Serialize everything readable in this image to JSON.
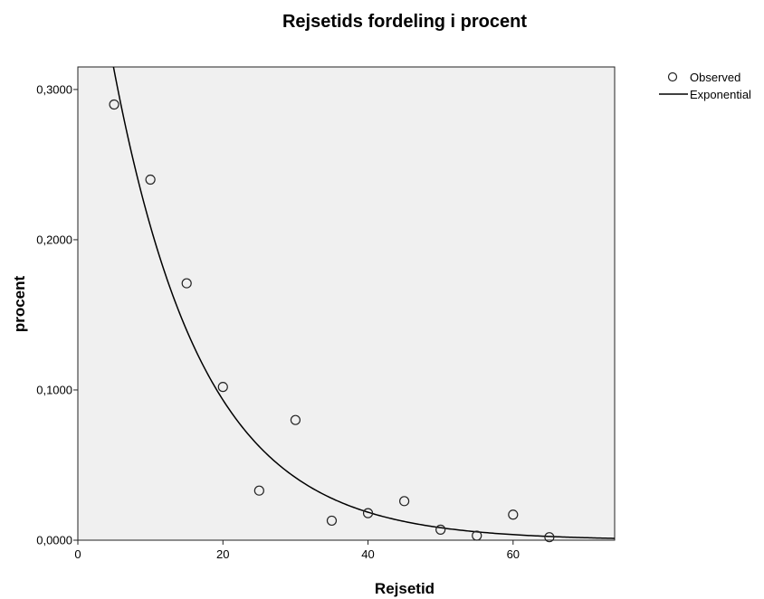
{
  "chart_data": {
    "type": "scatter",
    "title": "Rejsetids fordeling i procent",
    "xlabel": "Rejsetid",
    "ylabel": "procent",
    "xlim": [
      0,
      74
    ],
    "ylim": [
      0,
      0.315
    ],
    "grid": false,
    "legend_position": "top-right",
    "x_ticks": [
      {
        "value": 0,
        "label": "0"
      },
      {
        "value": 20,
        "label": "20"
      },
      {
        "value": 40,
        "label": "40"
      },
      {
        "value": 60,
        "label": "60"
      }
    ],
    "y_ticks": [
      {
        "value": 0,
        "label": "0,0000"
      },
      {
        "value": 0.1,
        "label": "0,1000"
      },
      {
        "value": 0.2,
        "label": "0,2000"
      },
      {
        "value": 0.3,
        "label": "0,3000"
      }
    ],
    "series": [
      {
        "name": "Observed",
        "kind": "points",
        "x": [
          5,
          10,
          15,
          20,
          25,
          30,
          35,
          40,
          45,
          50,
          55,
          60,
          65
        ],
        "y": [
          0.29,
          0.24,
          0.171,
          0.102,
          0.033,
          0.08,
          0.013,
          0.018,
          0.026,
          0.007,
          0.003,
          0.017,
          0.002
        ]
      },
      {
        "name": "Exponential",
        "kind": "curve",
        "model": {
          "a": 0.468,
          "b": -0.0806
        }
      }
    ],
    "colors": {
      "plot_background": "#f0f0f0",
      "line": "#000000",
      "marker_stroke": "#222222",
      "marker_fill": "#ffffff"
    }
  }
}
